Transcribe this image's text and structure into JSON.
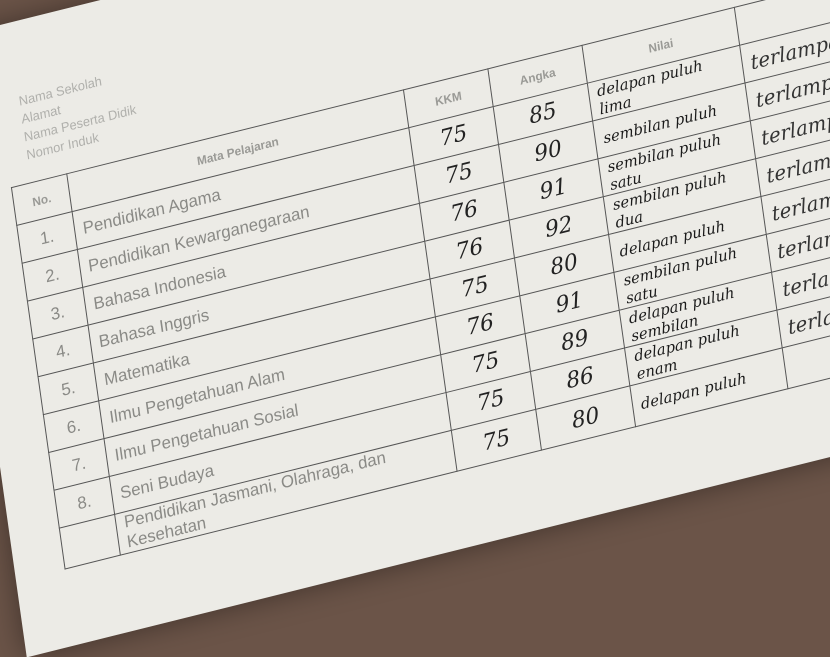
{
  "meta": {
    "lines": [
      "Nama Sekolah",
      "Alamat",
      "Nama Peserta Didik",
      "Nomor Induk"
    ]
  },
  "headers": {
    "no": "No.",
    "subject": "Mata Pelajaran",
    "kkm": "KKM",
    "angka": "Angka",
    "nilai": "Nilai"
  },
  "rows": [
    {
      "no": "1.",
      "subject": "Pendidikan Agama",
      "kkm": "75",
      "angka": "85",
      "huruf": "delapan puluh lima",
      "ket": "terlampaui"
    },
    {
      "no": "2.",
      "subject": "Pendidikan Kewarganegaraan",
      "kkm": "75",
      "angka": "90",
      "huruf": "sembilan puluh",
      "ket": "terlampaui"
    },
    {
      "no": "3.",
      "subject": "Bahasa Indonesia",
      "kkm": "76",
      "angka": "91",
      "huruf": "sembilan puluh satu",
      "ket": "terlampaui"
    },
    {
      "no": "4.",
      "subject": "Bahasa Inggris",
      "kkm": "76",
      "angka": "92",
      "huruf": "sembilan puluh dua",
      "ket": "terlampaui"
    },
    {
      "no": "5.",
      "subject": "Matematika",
      "kkm": "75",
      "angka": "80",
      "huruf": "delapan puluh",
      "ket": "terlampaui"
    },
    {
      "no": "6.",
      "subject": "Ilmu Pengetahuan Alam",
      "kkm": "76",
      "angka": "91",
      "huruf": "sembilan puluh satu",
      "ket": "terlampaui"
    },
    {
      "no": "7.",
      "subject": "Ilmu Pengetahuan Sosial",
      "kkm": "75",
      "angka": "89",
      "huruf": "delapan puluh sembilan",
      "ket": "terlampaui"
    },
    {
      "no": "8.",
      "subject": "Seni Budaya",
      "kkm": "75",
      "angka": "86",
      "huruf": "delapan puluh enam",
      "ket": "terlampaui"
    },
    {
      "no": "",
      "subject": "Pendidikan Jasmani, Olahraga, dan Kesehatan",
      "kkm": "75",
      "angka": "80",
      "huruf": "delapan puluh",
      "ket": ""
    }
  ]
}
